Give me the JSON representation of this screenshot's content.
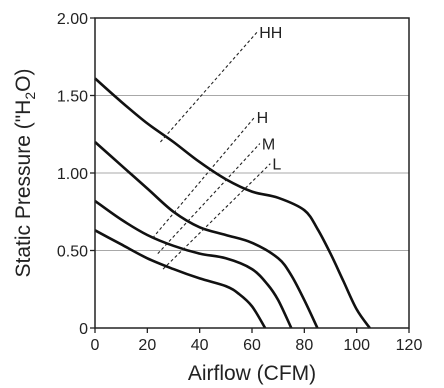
{
  "chart_data": {
    "type": "line",
    "xlabel": "Airflow (CFM)",
    "ylabel_main": "Static Pressure (\"H",
    "ylabel_sub": "2",
    "ylabel_end": "O)",
    "xlim": [
      0,
      120
    ],
    "ylim": [
      0,
      2.0
    ],
    "x_ticks": [
      0,
      20,
      40,
      60,
      80,
      100,
      120
    ],
    "x_tick_labels": [
      "0",
      "20",
      "40",
      "60",
      "80",
      "100",
      "120"
    ],
    "y_ticks": [
      0,
      0.5,
      1.0,
      1.5,
      2.0
    ],
    "y_tick_labels": [
      "0",
      "0.50",
      "1.00",
      "1.50",
      "2.00"
    ],
    "grid": "horizontal",
    "series": [
      {
        "name": "HH",
        "x": [
          0,
          10,
          20,
          30,
          40,
          50,
          60,
          70,
          80,
          85,
          90,
          95,
          100,
          105
        ],
        "y": [
          1.61,
          1.46,
          1.32,
          1.2,
          1.07,
          0.96,
          0.88,
          0.84,
          0.76,
          0.64,
          0.48,
          0.3,
          0.12,
          0
        ]
      },
      {
        "name": "H",
        "x": [
          0,
          10,
          20,
          30,
          40,
          50,
          60,
          70,
          75,
          80,
          85
        ],
        "y": [
          1.2,
          1.05,
          0.9,
          0.75,
          0.65,
          0.6,
          0.55,
          0.45,
          0.34,
          0.18,
          0
        ]
      },
      {
        "name": "M",
        "x": [
          0,
          10,
          20,
          30,
          40,
          50,
          60,
          66,
          70,
          75
        ],
        "y": [
          0.82,
          0.7,
          0.6,
          0.53,
          0.48,
          0.45,
          0.38,
          0.28,
          0.18,
          0
        ]
      },
      {
        "name": "L",
        "x": [
          0,
          10,
          20,
          30,
          40,
          50,
          55,
          60,
          65
        ],
        "y": [
          0.63,
          0.54,
          0.45,
          0.38,
          0.32,
          0.27,
          0.22,
          0.14,
          0
        ]
      }
    ],
    "leaders": [
      {
        "label": "HH",
        "from": [
          25,
          1.2
        ],
        "to": [
          62,
          1.91
        ]
      },
      {
        "label": "H",
        "from": [
          22,
          0.58
        ],
        "to": [
          61,
          1.36
        ]
      },
      {
        "label": "M",
        "from": [
          24,
          0.48
        ],
        "to": [
          63,
          1.19
        ]
      },
      {
        "label": "L",
        "from": [
          26,
          0.38
        ],
        "to": [
          67,
          1.06
        ]
      }
    ]
  }
}
